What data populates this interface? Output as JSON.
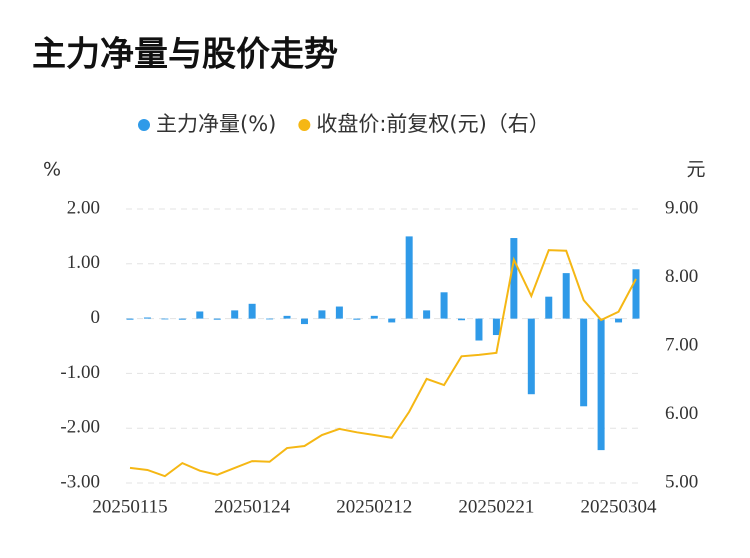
{
  "chart_data": {
    "type": "bar-line",
    "title": "主力净量与股价走势",
    "y_label": "%",
    "y2_label": "元",
    "categories": [
      "20250115",
      null,
      null,
      null,
      null,
      null,
      null,
      "20250124",
      null,
      null,
      null,
      null,
      null,
      null,
      "20250212",
      null,
      null,
      null,
      null,
      null,
      null,
      "20250221",
      null,
      null,
      null,
      null,
      null,
      null,
      "20250304",
      null
    ],
    "series": [
      {
        "name": "主力净量(%)",
        "type": "bar",
        "color": "#2f9ae8",
        "values": [
          -0.02,
          0.02,
          0,
          -0.02,
          0.13,
          -0.02,
          0.15,
          0.27,
          0,
          0.05,
          -0.1,
          0.15,
          0.22,
          -0.02,
          0.05,
          -0.07,
          1.5,
          0.15,
          0.48,
          -0.03,
          -0.4,
          -0.3,
          1.47,
          -1.38,
          0.4,
          0.83,
          -1.6,
          -2.4,
          -0.07,
          0.9
        ]
      },
      {
        "name": "收盘价:前复权(元)（右）",
        "type": "line",
        "axis": "y2",
        "color": "#f5b714",
        "values": [
          5.22,
          5.19,
          5.1,
          5.29,
          5.18,
          5.12,
          5.22,
          5.32,
          5.31,
          5.51,
          5.54,
          5.7,
          5.79,
          5.74,
          5.7,
          5.66,
          6.04,
          6.52,
          6.43,
          6.85,
          6.87,
          6.9,
          8.26,
          7.73,
          8.4,
          8.39,
          7.67,
          7.38,
          7.5,
          7.98
        ]
      }
    ],
    "ylim": [
      -3,
      2
    ],
    "yticks": [
      {
        "value": 2,
        "label": "2.00"
      },
      {
        "value": 1,
        "label": "1.00"
      },
      0,
      {
        "value": -1,
        "label": "-1.00"
      },
      {
        "value": -2,
        "label": "-2.00"
      },
      {
        "value": -3,
        "label": "-3.00"
      }
    ],
    "y2lim": [
      5,
      9
    ],
    "y2ticks": [
      {
        "value": 9,
        "label": "9.00"
      },
      {
        "value": 8,
        "label": "8.00"
      },
      {
        "value": 7,
        "label": "7.00"
      },
      {
        "value": 6,
        "label": "6.00"
      },
      {
        "value": 5,
        "label": "5.00"
      }
    ],
    "grid": true,
    "legend": "top"
  }
}
